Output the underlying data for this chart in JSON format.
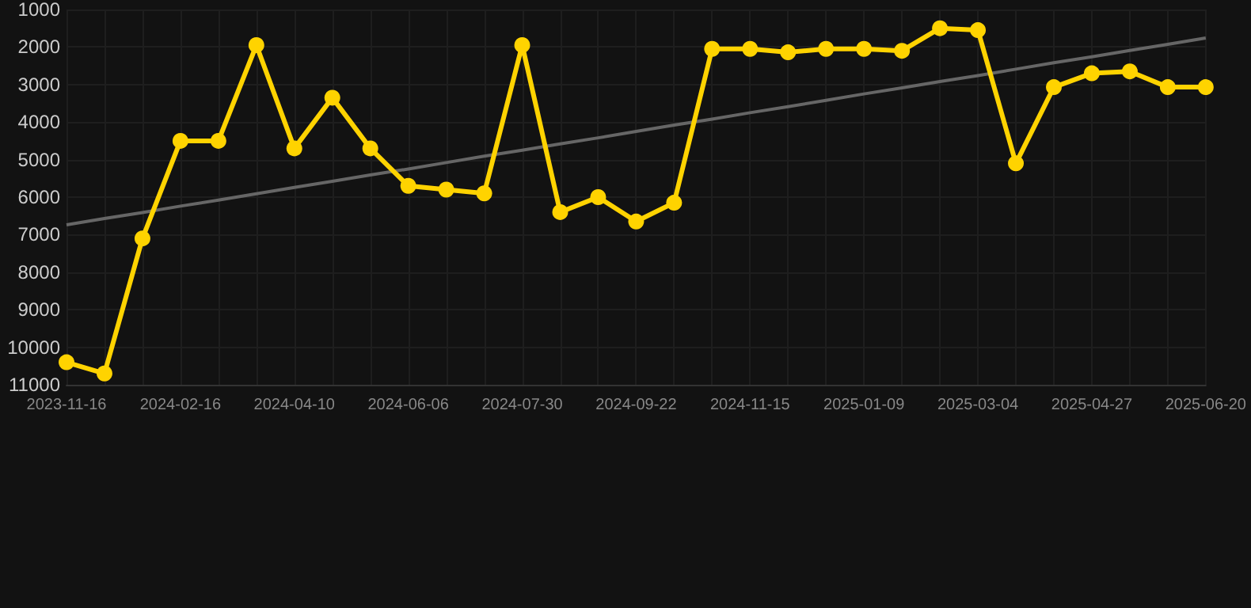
{
  "chart_data": {
    "type": "line",
    "categories": [
      "2023-11-16",
      null,
      null,
      "2024-02-16",
      null,
      null,
      "2024-04-10",
      null,
      null,
      "2024-06-06",
      null,
      null,
      "2024-07-30",
      null,
      null,
      "2024-09-22",
      null,
      null,
      "2024-11-15",
      null,
      null,
      "2025-01-09",
      null,
      null,
      "2025-03-04",
      null,
      null,
      "2025-04-27",
      null,
      null,
      "2025-06-20"
    ],
    "series": [
      {
        "color": "#ffd300",
        "marker": "circle",
        "values": [
          10400,
          10700,
          7100,
          4500,
          4500,
          1950,
          4700,
          3350,
          4700,
          5700,
          5800,
          5900,
          1950,
          6400,
          6000,
          6650,
          6150,
          2050,
          2050,
          2140,
          2050,
          2050,
          2100,
          1500,
          1550,
          5100,
          3070,
          2700,
          2650,
          3070,
          3070
        ]
      },
      {
        "type": "line",
        "color": "#666666",
        "marker": "none",
        "values": [
          6740,
          6570,
          6410,
          6240,
          6080,
          5910,
          5740,
          5580,
          5410,
          5250,
          5080,
          4910,
          4750,
          4580,
          4420,
          4250,
          4080,
          3920,
          3750,
          3590,
          3420,
          3250,
          3090,
          2920,
          2760,
          2590,
          2420,
          2260,
          2090,
          1930,
          1760
        ]
      }
    ],
    "ylim": [
      11000,
      1000
    ],
    "yticks": [
      1000,
      2000,
      3000,
      4000,
      5000,
      6000,
      7000,
      8000,
      9000,
      10000,
      11000
    ],
    "grid": true
  }
}
